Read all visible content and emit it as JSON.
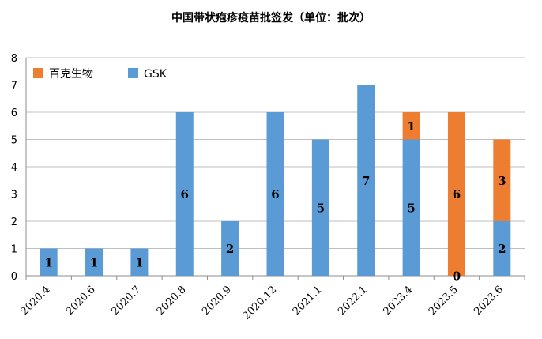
{
  "chart_data": {
    "type": "bar",
    "stacked": true,
    "title": "中国带状疱疹疫苗批签发（单位：批次）",
    "categories": [
      "2020.4",
      "2020.6",
      "2020.7",
      "2020.8",
      "2020.9",
      "2020.12",
      "2021.1",
      "2022.1",
      "2023.4",
      "2023.5",
      "2023.6"
    ],
    "series": [
      {
        "name": "GSK",
        "color": "#5B9BD5",
        "values": [
          1,
          1,
          1,
          6,
          2,
          6,
          5,
          7,
          5,
          0,
          2
        ]
      },
      {
        "name": "百克生物",
        "color": "#ED7D31",
        "values": [
          0,
          0,
          0,
          0,
          0,
          0,
          0,
          0,
          1,
          6,
          3
        ]
      }
    ],
    "data_labels": [
      {
        "category": "2020.4",
        "series": "GSK",
        "text": "1"
      },
      {
        "category": "2020.6",
        "series": "GSK",
        "text": "1"
      },
      {
        "category": "2020.7",
        "series": "GSK",
        "text": "1"
      },
      {
        "category": "2020.8",
        "series": "GSK",
        "text": "6"
      },
      {
        "category": "2020.9",
        "series": "GSK",
        "text": "2"
      },
      {
        "category": "2020.12",
        "series": "GSK",
        "text": "6"
      },
      {
        "category": "2021.1",
        "series": "GSK",
        "text": "5"
      },
      {
        "category": "2022.1",
        "series": "GSK",
        "text": "7"
      },
      {
        "category": "2023.4",
        "series": "GSK",
        "text": "5"
      },
      {
        "category": "2023.4",
        "series": "百克生物",
        "text": "1"
      },
      {
        "category": "2023.5",
        "series": "GSK",
        "text": "0"
      },
      {
        "category": "2023.5",
        "series": "百克生物",
        "text": "6"
      },
      {
        "category": "2023.6",
        "series": "GSK",
        "text": "2"
      },
      {
        "category": "2023.6",
        "series": "百克生物",
        "text": "3"
      }
    ],
    "ylim": [
      0,
      8
    ],
    "yticks": [
      "0",
      "1",
      "2",
      "3",
      "4",
      "5",
      "6",
      "7",
      "8"
    ],
    "grid": true,
    "legend_position": "top-left",
    "legend_order": [
      "百克生物",
      "GSK"
    ]
  }
}
